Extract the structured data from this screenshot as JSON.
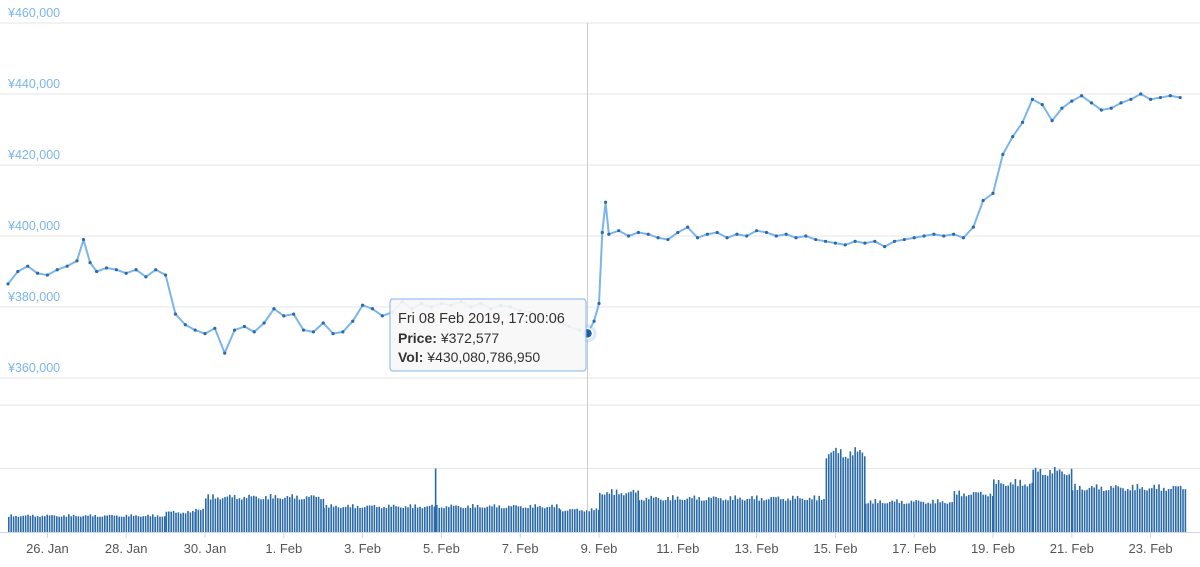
{
  "chart_data": [
    {
      "type": "line",
      "title": "",
      "xlabel": "",
      "ylabel": "",
      "x_range": [
        "2019-01-25",
        "2019-02-23"
      ],
      "ylim": [
        360000,
        460000
      ],
      "y_ticks": [
        "¥360,000",
        "¥380,000",
        "¥400,000",
        "¥420,000",
        "¥440,000",
        "¥460,000"
      ],
      "y_tick_values": [
        360000,
        380000,
        400000,
        420000,
        440000,
        460000
      ],
      "x_ticks": [
        "26. Jan",
        "28. Jan",
        "30. Jan",
        "1. Feb",
        "3. Feb",
        "5. Feb",
        "7. Feb",
        "9. Feb",
        "11. Feb",
        "13. Feb",
        "15. Feb",
        "17. Feb",
        "19. Feb",
        "21. Feb",
        "23. Feb"
      ],
      "x_tick_dates": [
        "2019-01-26",
        "2019-01-28",
        "2019-01-30",
        "2019-02-01",
        "2019-02-03",
        "2019-02-05",
        "2019-02-07",
        "2019-02-09",
        "2019-02-11",
        "2019-02-13",
        "2019-02-15",
        "2019-02-17",
        "2019-02-19",
        "2019-02-21",
        "2019-02-23"
      ],
      "grid": true,
      "series": [
        {
          "name": "",
          "color": "#7cb5ec",
          "marker_color": "#2b6aa8",
          "points": [
            [
              "2019-01-25 00:00",
              386500
            ],
            [
              "2019-01-25 06:00",
              390000
            ],
            [
              "2019-01-25 12:00",
              391500
            ],
            [
              "2019-01-25 18:00",
              389500
            ],
            [
              "2019-01-26 00:00",
              389000
            ],
            [
              "2019-01-26 06:00",
              390500
            ],
            [
              "2019-01-26 12:00",
              391500
            ],
            [
              "2019-01-26 18:00",
              393000
            ],
            [
              "2019-01-26 22:00",
              399000
            ],
            [
              "2019-01-27 02:00",
              392500
            ],
            [
              "2019-01-27 06:00",
              390000
            ],
            [
              "2019-01-27 12:00",
              391000
            ],
            [
              "2019-01-27 18:00",
              390500
            ],
            [
              "2019-01-28 00:00",
              389500
            ],
            [
              "2019-01-28 06:00",
              390500
            ],
            [
              "2019-01-28 12:00",
              388500
            ],
            [
              "2019-01-28 18:00",
              390500
            ],
            [
              "2019-01-29 00:00",
              389000
            ],
            [
              "2019-01-29 06:00",
              378000
            ],
            [
              "2019-01-29 12:00",
              375000
            ],
            [
              "2019-01-29 18:00",
              373500
            ],
            [
              "2019-01-30 00:00",
              372500
            ],
            [
              "2019-01-30 06:00",
              374000
            ],
            [
              "2019-01-30 12:00",
              367000
            ],
            [
              "2019-01-30 18:00",
              373500
            ],
            [
              "2019-01-31 00:00",
              374500
            ],
            [
              "2019-01-31 06:00",
              373000
            ],
            [
              "2019-01-31 12:00",
              375500
            ],
            [
              "2019-01-31 18:00",
              379500
            ],
            [
              "2019-02-01 00:00",
              377500
            ],
            [
              "2019-02-01 06:00",
              378000
            ],
            [
              "2019-02-01 12:00",
              373500
            ],
            [
              "2019-02-01 18:00",
              373000
            ],
            [
              "2019-02-02 00:00",
              375500
            ],
            [
              "2019-02-02 06:00",
              372500
            ],
            [
              "2019-02-02 12:00",
              373000
            ],
            [
              "2019-02-02 18:00",
              376000
            ],
            [
              "2019-02-03 00:00",
              380500
            ],
            [
              "2019-02-03 06:00",
              379500
            ],
            [
              "2019-02-03 12:00",
              377500
            ],
            [
              "2019-02-03 18:00",
              378500
            ],
            [
              "2019-02-04 00:00",
              381500
            ],
            [
              "2019-02-04 06:00",
              379500
            ],
            [
              "2019-02-04 12:00",
              381000
            ],
            [
              "2019-02-04 18:00",
              380000
            ],
            [
              "2019-02-05 00:00",
              381000
            ],
            [
              "2019-02-05 06:00",
              380500
            ],
            [
              "2019-02-05 12:00",
              381500
            ],
            [
              "2019-02-05 18:00",
              380000
            ],
            [
              "2019-02-06 00:00",
              381000
            ],
            [
              "2019-02-06 06:00",
              379500
            ],
            [
              "2019-02-06 12:00",
              380500
            ],
            [
              "2019-02-06 18:00",
              380000
            ],
            [
              "2019-02-07 00:00",
              379000
            ],
            [
              "2019-02-07 06:00",
              378500
            ],
            [
              "2019-02-07 12:00",
              377500
            ],
            [
              "2019-02-07 18:00",
              376500
            ],
            [
              "2019-02-08 00:00",
              375500
            ],
            [
              "2019-02-08 06:00",
              374500
            ],
            [
              "2019-02-08 12:00",
              373500
            ],
            [
              "2019-02-08 17:00",
              372577
            ],
            [
              "2019-02-08 21:00",
              376000
            ],
            [
              "2019-02-09 00:00",
              381000
            ],
            [
              "2019-02-09 02:00",
              401000
            ],
            [
              "2019-02-09 04:00",
              409500
            ],
            [
              "2019-02-09 06:00",
              400500
            ],
            [
              "2019-02-09 12:00",
              401500
            ],
            [
              "2019-02-09 18:00",
              400000
            ],
            [
              "2019-02-10 00:00",
              401000
            ],
            [
              "2019-02-10 06:00",
              400500
            ],
            [
              "2019-02-10 12:00",
              399500
            ],
            [
              "2019-02-10 18:00",
              399000
            ],
            [
              "2019-02-11 00:00",
              401000
            ],
            [
              "2019-02-11 06:00",
              402500
            ],
            [
              "2019-02-11 12:00",
              399500
            ],
            [
              "2019-02-11 18:00",
              400500
            ],
            [
              "2019-02-12 00:00",
              401000
            ],
            [
              "2019-02-12 06:00",
              399500
            ],
            [
              "2019-02-12 12:00",
              400500
            ],
            [
              "2019-02-12 18:00",
              400000
            ],
            [
              "2019-02-13 00:00",
              401500
            ],
            [
              "2019-02-13 06:00",
              401000
            ],
            [
              "2019-02-13 12:00",
              400000
            ],
            [
              "2019-02-13 18:00",
              400500
            ],
            [
              "2019-02-14 00:00",
              399500
            ],
            [
              "2019-02-14 06:00",
              400000
            ],
            [
              "2019-02-14 12:00",
              399000
            ],
            [
              "2019-02-14 18:00",
              398500
            ],
            [
              "2019-02-15 00:00",
              398000
            ],
            [
              "2019-02-15 06:00",
              397500
            ],
            [
              "2019-02-15 12:00",
              398500
            ],
            [
              "2019-02-15 18:00",
              398000
            ],
            [
              "2019-02-16 00:00",
              398500
            ],
            [
              "2019-02-16 06:00",
              397000
            ],
            [
              "2019-02-16 12:00",
              398500
            ],
            [
              "2019-02-16 18:00",
              399000
            ],
            [
              "2019-02-17 00:00",
              399500
            ],
            [
              "2019-02-17 06:00",
              400000
            ],
            [
              "2019-02-17 12:00",
              400500
            ],
            [
              "2019-02-17 18:00",
              400000
            ],
            [
              "2019-02-18 00:00",
              400500
            ],
            [
              "2019-02-18 06:00",
              399500
            ],
            [
              "2019-02-18 12:00",
              402500
            ],
            [
              "2019-02-18 18:00",
              410000
            ],
            [
              "2019-02-19 00:00",
              412000
            ],
            [
              "2019-02-19 06:00",
              423000
            ],
            [
              "2019-02-19 12:00",
              428000
            ],
            [
              "2019-02-19 18:00",
              432000
            ],
            [
              "2019-02-20 00:00",
              438500
            ],
            [
              "2019-02-20 06:00",
              437000
            ],
            [
              "2019-02-20 12:00",
              432500
            ],
            [
              "2019-02-20 18:00",
              436000
            ],
            [
              "2019-02-21 00:00",
              438000
            ],
            [
              "2019-02-21 06:00",
              439500
            ],
            [
              "2019-02-21 12:00",
              437500
            ],
            [
              "2019-02-21 18:00",
              435500
            ],
            [
              "2019-02-22 00:00",
              436000
            ],
            [
              "2019-02-22 06:00",
              437500
            ],
            [
              "2019-02-22 12:00",
              438500
            ],
            [
              "2019-02-22 18:00",
              440000
            ],
            [
              "2019-02-23 00:00",
              438500
            ],
            [
              "2019-02-23 06:00",
              439000
            ],
            [
              "2019-02-23 12:00",
              439500
            ],
            [
              "2019-02-23 18:00",
              439000
            ]
          ]
        }
      ],
      "crosshair_date": "2019-02-08 17:00",
      "tooltip": {
        "title": "Fri 08 Feb 2019, 17:00:06",
        "price_label": "Price:",
        "price_value": "¥372,577",
        "vol_label": "Vol:",
        "vol_value": "¥430,080,786,950"
      }
    },
    {
      "type": "bar",
      "title": "",
      "xlabel": "",
      "ylabel": "",
      "color": "#2b6aa8",
      "series": [
        {
          "name": "",
          "segments": [
            {
              "from": "2019-01-25",
              "to": "2019-01-29 00:00",
              "level": 0.14
            },
            {
              "from": "2019-01-29 00:00",
              "to": "2019-01-29 18:00",
              "level": 0.17
            },
            {
              "from": "2019-01-29 18:00",
              "to": "2019-01-30 00:00",
              "level": 0.2
            },
            {
              "from": "2019-01-30 00:00",
              "to": "2019-02-02 00:00",
              "level": 0.3
            },
            {
              "from": "2019-02-02 00:00",
              "to": "2019-02-08 00:00",
              "level": 0.22
            },
            {
              "from": "2019-02-08 00:00",
              "to": "2019-02-09 00:00",
              "level": 0.19
            },
            {
              "from": "2019-02-09 00:00",
              "to": "2019-02-10 00:00",
              "level": 0.34
            },
            {
              "from": "2019-02-10 00:00",
              "to": "2019-02-14 18:00",
              "level": 0.29
            },
            {
              "from": "2019-02-14 18:00",
              "to": "2019-02-15 18:00",
              "level": 0.68
            },
            {
              "from": "2019-02-15 18:00",
              "to": "2019-02-18 00:00",
              "level": 0.26
            },
            {
              "from": "2019-02-18 00:00",
              "to": "2019-02-19 00:00",
              "level": 0.33
            },
            {
              "from": "2019-02-19 00:00",
              "to": "2019-02-20 00:00",
              "level": 0.42
            },
            {
              "from": "2019-02-20 00:00",
              "to": "2019-02-21 00:00",
              "level": 0.52
            },
            {
              "from": "2019-02-21 00:00",
              "to": "2019-02-23 22:00",
              "level": 0.38
            }
          ],
          "spikes": [
            {
              "date": "2019-02-04 20:00",
              "level": 0.5
            }
          ]
        }
      ]
    }
  ]
}
